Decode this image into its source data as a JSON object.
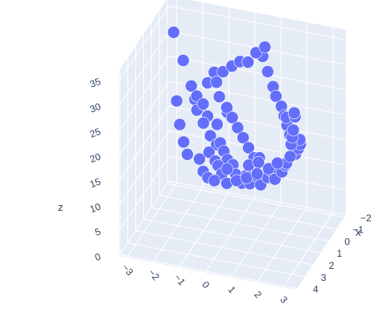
{
  "chart_data": {
    "type": "scatter3d",
    "marker_color": "#636efa",
    "pane_color": "#e5ecf6",
    "grid_color": "#ffffff",
    "font_color": "#2a3f5f",
    "axes": {
      "x": {
        "title": "x",
        "range": [
          -2.2,
          4.1
        ],
        "ticks": [
          -2,
          -1,
          0,
          1,
          2,
          3,
          4
        ],
        "tick_labels": [
          "−2",
          "−1",
          "0",
          "1",
          "2",
          "3",
          "4"
        ]
      },
      "y": {
        "title": "",
        "range": [
          -3.3,
          3.5
        ],
        "ticks": [
          -3,
          -2,
          -1,
          0,
          1,
          2,
          3
        ],
        "tick_labels": [
          "−3",
          "−2",
          "−1",
          "0",
          "1",
          "2",
          "3"
        ]
      },
      "z": {
        "title": "z",
        "range": [
          0,
          37
        ],
        "ticks": [
          0,
          5,
          10,
          15,
          20,
          25,
          30,
          35
        ],
        "tick_labels": [
          "0",
          "5",
          "10",
          "15",
          "20",
          "25",
          "30",
          "35"
        ]
      }
    },
    "points": [
      {
        "x": -1.8,
        "y": -3.0,
        "z": 31
      },
      {
        "x": -1.7,
        "y": -2.6,
        "z": 26
      },
      {
        "x": -1.4,
        "y": -2.2,
        "z": 22
      },
      {
        "x": -1.2,
        "y": -2.0,
        "z": 20
      },
      {
        "x": -1.1,
        "y": -1.9,
        "z": 21
      },
      {
        "x": -0.9,
        "y": -1.6,
        "z": 20
      },
      {
        "x": -0.8,
        "y": -1.8,
        "z": 19
      },
      {
        "x": -0.6,
        "y": -1.5,
        "z": 21
      },
      {
        "x": -0.5,
        "y": -1.3,
        "z": 19
      },
      {
        "x": -0.3,
        "y": -1.4,
        "z": 18
      },
      {
        "x": -1.5,
        "y": -1.6,
        "z": 23
      },
      {
        "x": -1.3,
        "y": -1.2,
        "z": 24
      },
      {
        "x": -1.0,
        "y": -1.0,
        "z": 22
      },
      {
        "x": -0.7,
        "y": -0.6,
        "z": 20
      },
      {
        "x": -0.4,
        "y": -0.9,
        "z": 18
      },
      {
        "x": -0.2,
        "y": -1.1,
        "z": 16
      },
      {
        "x": 0.0,
        "y": -0.8,
        "z": 15
      },
      {
        "x": 0.2,
        "y": -0.6,
        "z": 16
      },
      {
        "x": 0.3,
        "y": -1.0,
        "z": 14
      },
      {
        "x": 0.4,
        "y": -0.4,
        "z": 15
      },
      {
        "x": 0.5,
        "y": -0.7,
        "z": 13
      },
      {
        "x": 0.6,
        "y": -0.2,
        "z": 14
      },
      {
        "x": 0.8,
        "y": -0.5,
        "z": 13
      },
      {
        "x": 0.9,
        "y": 0.1,
        "z": 14
      },
      {
        "x": 1.0,
        "y": -0.3,
        "z": 12
      },
      {
        "x": 1.2,
        "y": 0.3,
        "z": 13
      },
      {
        "x": 1.3,
        "y": 0.0,
        "z": 14
      },
      {
        "x": 1.4,
        "y": 0.6,
        "z": 12
      },
      {
        "x": 1.5,
        "y": 0.8,
        "z": 14
      },
      {
        "x": 1.7,
        "y": 1.0,
        "z": 13
      },
      {
        "x": 1.8,
        "y": 1.3,
        "z": 15
      },
      {
        "x": 2.0,
        "y": 1.5,
        "z": 14
      },
      {
        "x": 2.1,
        "y": 1.8,
        "z": 16
      },
      {
        "x": 2.3,
        "y": 2.0,
        "z": 18
      },
      {
        "x": 2.5,
        "y": 2.2,
        "z": 17
      },
      {
        "x": 2.6,
        "y": 2.5,
        "z": 19
      },
      {
        "x": 2.8,
        "y": 2.7,
        "z": 21
      },
      {
        "x": 3.0,
        "y": 2.8,
        "z": 22
      },
      {
        "x": 3.2,
        "y": 3.0,
        "z": 24
      },
      {
        "x": 3.4,
        "y": 3.1,
        "z": 27
      },
      {
        "x": 3.6,
        "y": 3.2,
        "z": 29
      },
      {
        "x": 3.8,
        "y": 3.3,
        "z": 31
      },
      {
        "x": 3.9,
        "y": 3.4,
        "z": 34
      },
      {
        "x": 4.0,
        "y": 3.4,
        "z": 35
      },
      {
        "x": 3.7,
        "y": 3.0,
        "z": 33
      },
      {
        "x": -2.0,
        "y": -1.5,
        "z": 24
      },
      {
        "x": -1.8,
        "y": -1.1,
        "z": 25
      },
      {
        "x": -1.6,
        "y": -0.7,
        "z": 27
      },
      {
        "x": -1.3,
        "y": -0.3,
        "z": 29
      },
      {
        "x": -1.0,
        "y": 0.1,
        "z": 30
      },
      {
        "x": -0.7,
        "y": 0.5,
        "z": 33
      },
      {
        "x": -0.5,
        "y": 0.9,
        "z": 35
      },
      {
        "x": -0.9,
        "y": 0.7,
        "z": 32
      },
      {
        "x": -0.2,
        "y": 1.1,
        "z": 31
      },
      {
        "x": 0.1,
        "y": 1.4,
        "z": 29
      },
      {
        "x": 0.4,
        "y": 1.6,
        "z": 28
      },
      {
        "x": 0.7,
        "y": 1.9,
        "z": 27
      },
      {
        "x": 1.0,
        "y": 2.1,
        "z": 26
      },
      {
        "x": 1.3,
        "y": 2.3,
        "z": 25
      },
      {
        "x": 1.6,
        "y": 2.5,
        "z": 24
      },
      {
        "x": 1.9,
        "y": 2.7,
        "z": 23
      },
      {
        "x": 2.2,
        "y": 2.9,
        "z": 22
      },
      {
        "x": 2.5,
        "y": 3.1,
        "z": 24
      },
      {
        "x": 2.9,
        "y": 3.3,
        "z": 26
      },
      {
        "x": 3.3,
        "y": 3.4,
        "z": 28
      },
      {
        "x": -0.3,
        "y": -0.5,
        "z": 22
      },
      {
        "x": 0.0,
        "y": -0.2,
        "z": 21
      },
      {
        "x": 0.3,
        "y": 0.1,
        "z": 20
      },
      {
        "x": 0.6,
        "y": 0.4,
        "z": 19
      },
      {
        "x": 0.9,
        "y": 0.7,
        "z": 18
      },
      {
        "x": 1.2,
        "y": 1.0,
        "z": 17
      },
      {
        "x": 1.5,
        "y": 1.3,
        "z": 18
      },
      {
        "x": 0.2,
        "y": -1.4,
        "z": 12
      },
      {
        "x": 0.7,
        "y": -1.1,
        "z": 11
      },
      {
        "x": 1.1,
        "y": -0.8,
        "z": 11
      },
      {
        "x": 1.6,
        "y": -0.4,
        "z": 12
      },
      {
        "x": 2.0,
        "y": 0.2,
        "z": 13
      },
      {
        "x": 2.4,
        "y": 0.7,
        "z": 15
      },
      {
        "x": 2.8,
        "y": 1.2,
        "z": 17
      },
      {
        "x": 3.1,
        "y": 1.7,
        "z": 19
      },
      {
        "x": 3.3,
        "y": 2.2,
        "z": 21
      },
      {
        "x": 3.5,
        "y": 2.6,
        "z": 23
      },
      {
        "x": -0.6,
        "y": -2.4,
        "z": 16
      },
      {
        "x": -0.1,
        "y": -2.1,
        "z": 14
      },
      {
        "x": 0.4,
        "y": -1.8,
        "z": 13
      },
      {
        "x": -1.2,
        "y": -2.7,
        "z": 19
      },
      {
        "x": 2.6,
        "y": 1.6,
        "z": 20
      },
      {
        "x": 2.2,
        "y": 1.1,
        "z": 18
      }
    ]
  }
}
